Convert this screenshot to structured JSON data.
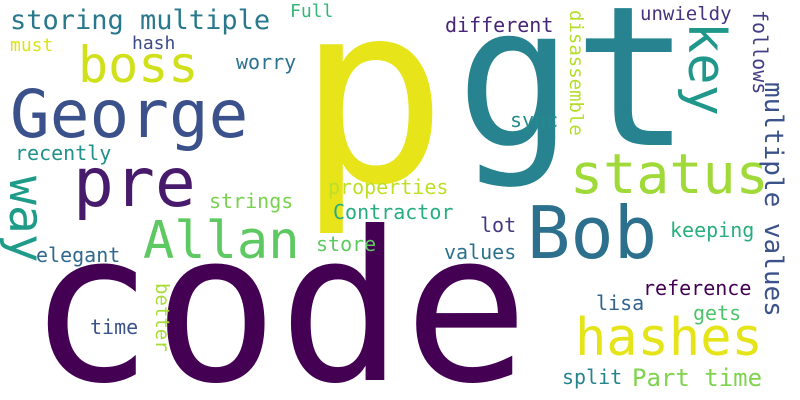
{
  "words": {
    "p": {
      "text": "p",
      "color": "#e7e419"
    },
    "gt": {
      "text": "gt",
      "color": "#26838f"
    },
    "code": {
      "text": "code",
      "color": "#440154"
    },
    "george": {
      "text": "George",
      "color": "#3b518b"
    },
    "pre": {
      "text": "pre",
      "color": "#481a6c"
    },
    "boss": {
      "text": "boss",
      "color": "#d0e11c"
    },
    "storing_multiple": {
      "text": "storing multiple",
      "color": "#2a788e"
    },
    "full": {
      "text": "Full",
      "color": "#35b779"
    },
    "must": {
      "text": "must",
      "color": "#dde318"
    },
    "hash_top": {
      "text": "hash",
      "color": "#3e4a89"
    },
    "worry": {
      "text": "worry",
      "color": "#2c728e"
    },
    "different": {
      "text": "different",
      "color": "#482677"
    },
    "disassemble": {
      "text": "disassemble",
      "color": "#b5de2b"
    },
    "unwieldy": {
      "text": "unwieldy",
      "color": "#46337f"
    },
    "key": {
      "text": "key",
      "color": "#1f988b"
    },
    "follows": {
      "text": "follows",
      "color": "#433e85"
    },
    "status": {
      "text": "status",
      "color": "#a0da39"
    },
    "multiple_values": {
      "text": "multiple values",
      "color": "#3b528b"
    },
    "recently": {
      "text": "recently",
      "color": "#21918c"
    },
    "sync": {
      "text": "sync",
      "color": "#238a8d"
    },
    "way": {
      "text": "way",
      "color": "#1e9c89"
    },
    "allan": {
      "text": "Allan",
      "color": "#5ec962"
    },
    "bob": {
      "text": "Bob",
      "color": "#2d708e"
    },
    "properties": {
      "text": "properties",
      "color": "#bddf26"
    },
    "strings": {
      "text": "strings",
      "color": "#7ad151"
    },
    "contractor": {
      "text": "Contractor",
      "color": "#27ad81"
    },
    "lot": {
      "text": "lot",
      "color": "#443a83"
    },
    "keeping": {
      "text": "keeping",
      "color": "#29af7f"
    },
    "elegant": {
      "text": "elegant",
      "color": "#31688e"
    },
    "store": {
      "text": "store",
      "color": "#5ec962"
    },
    "values": {
      "text": "values",
      "color": "#2c728e"
    },
    "hashes": {
      "text": "hashes",
      "color": "#e5e419"
    },
    "reference": {
      "text": "reference",
      "color": "#440154"
    },
    "better": {
      "text": "better",
      "color": "#a8db34"
    },
    "lisa": {
      "text": "lisa",
      "color": "#33638d"
    },
    "gets": {
      "text": "gets",
      "color": "#4ec36b"
    },
    "time": {
      "text": "time",
      "color": "#3b528b"
    },
    "part_time": {
      "text": "Part time",
      "color": "#7fd34e"
    },
    "split": {
      "text": "split",
      "color": "#25848e"
    }
  }
}
